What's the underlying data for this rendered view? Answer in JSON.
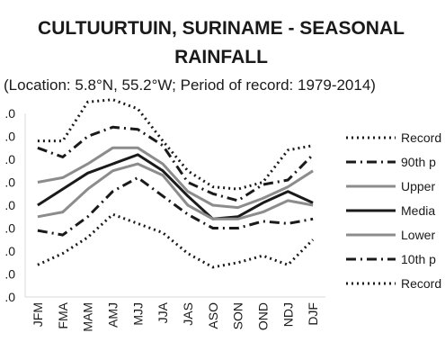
{
  "chart_data": {
    "type": "line",
    "title_line1": "CULTUURTUIN, SURINAME - SEASONAL",
    "title_line2": "RAINFALL",
    "subtitle": "(Location: 5.8°N, 55.2°W; Period of record: 1979-2014)",
    "categories": [
      "JFM",
      "FMA",
      "MAM",
      "AMJ",
      "MJJ",
      "JJA",
      "JAS",
      "ASO",
      "SON",
      "OND",
      "NDJ",
      "DJF"
    ],
    "ytick_labels": [
      ".0",
      ".0",
      ".0",
      ".0",
      ".0",
      ".0",
      ".0",
      ".0",
      ".0"
    ],
    "grid": false,
    "legend_position": "right",
    "series": [
      {
        "name": "Record",
        "style": "dotted",
        "color": "#1a1a1a",
        "values": [
          6.8,
          6.8,
          8.5,
          8.6,
          8.2,
          6.8,
          5.5,
          4.8,
          4.7,
          5.0,
          6.4,
          6.6
        ]
      },
      {
        "name": "90th p",
        "style": "dashdot",
        "color": "#1a1a1a",
        "values": [
          6.5,
          6.1,
          7.0,
          7.4,
          7.3,
          6.6,
          5.0,
          4.5,
          4.2,
          4.9,
          5.1,
          6.2
        ]
      },
      {
        "name": "Upper",
        "style": "solid",
        "color": "#8c8c8c",
        "values": [
          5.0,
          5.2,
          5.8,
          6.5,
          6.5,
          5.8,
          4.6,
          4.0,
          3.9,
          4.3,
          4.8,
          5.5
        ]
      },
      {
        "name": "Media",
        "style": "solid",
        "color": "#1a1a1a",
        "values": [
          4.0,
          4.7,
          5.4,
          5.8,
          6.2,
          5.5,
          4.4,
          3.4,
          3.5,
          4.1,
          4.6,
          4.1
        ]
      },
      {
        "name": "Lower",
        "style": "solid",
        "color": "#8c8c8c",
        "values": [
          3.5,
          3.7,
          4.7,
          5.5,
          5.8,
          5.3,
          4.0,
          3.4,
          3.4,
          3.7,
          4.2,
          4.0
        ]
      },
      {
        "name": "10th p",
        "style": "dashdot",
        "color": "#1a1a1a",
        "values": [
          2.9,
          2.7,
          3.5,
          4.6,
          5.2,
          4.4,
          3.6,
          3.0,
          3.0,
          3.3,
          3.2,
          3.4
        ]
      },
      {
        "name": "Record",
        "style": "dotted",
        "color": "#1a1a1a",
        "values": [
          1.4,
          1.9,
          2.6,
          3.6,
          3.2,
          2.8,
          1.9,
          1.3,
          1.5,
          1.8,
          1.4,
          2.5
        ]
      }
    ]
  }
}
